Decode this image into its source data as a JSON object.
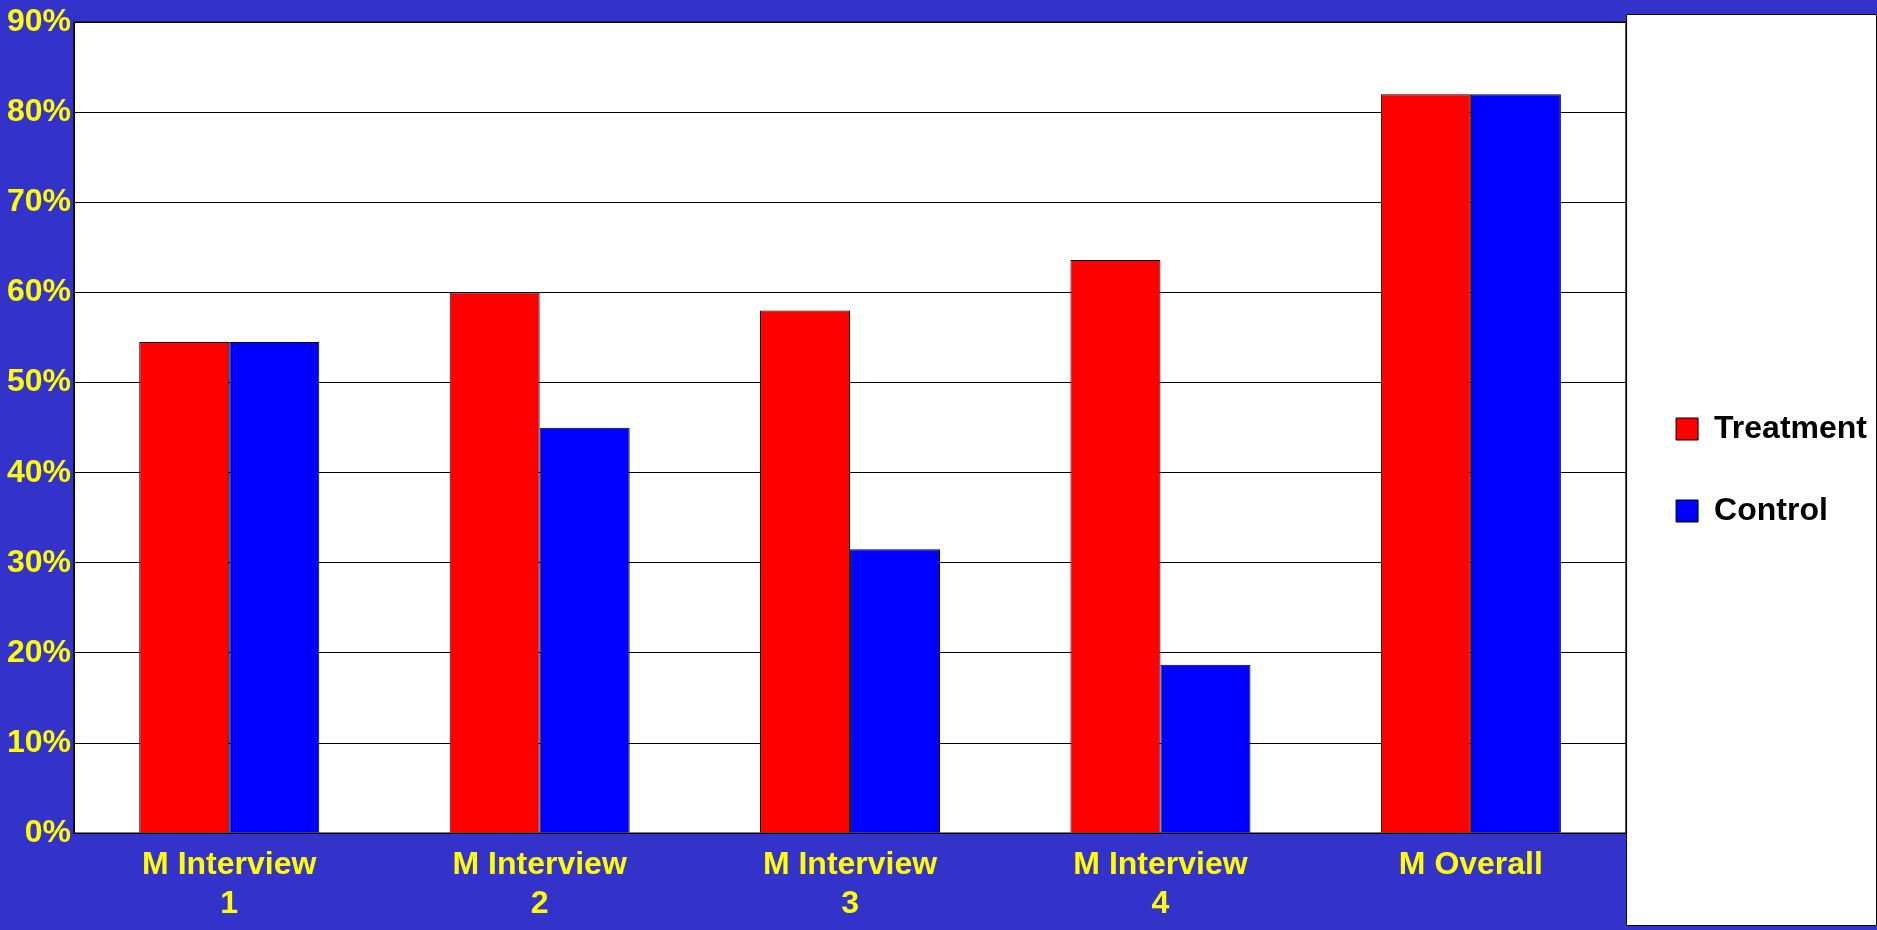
{
  "chart_data": {
    "type": "bar",
    "categories": [
      "M Interview 1",
      "M Interview 2",
      "M Interview 3",
      "M Interview 4",
      "M Overall"
    ],
    "series": [
      {
        "name": "Treatment",
        "color": "#ff0000",
        "values": [
          54.5,
          60,
          58,
          63.6,
          82
        ]
      },
      {
        "name": "Control",
        "color": "#0000ff",
        "values": [
          54.5,
          45,
          31.5,
          18.7,
          82
        ]
      }
    ],
    "ylim": [
      0,
      90
    ],
    "yticks": [
      {
        "value": 0,
        "label": "0%"
      },
      {
        "value": 10,
        "label": "10%"
      },
      {
        "value": 20,
        "label": "20%"
      },
      {
        "value": 30,
        "label": "30%"
      },
      {
        "value": 40,
        "label": "40%"
      },
      {
        "value": 50,
        "label": "50%"
      },
      {
        "value": 60,
        "label": "60%"
      },
      {
        "value": 70,
        "label": "70%"
      },
      {
        "value": 80,
        "label": "80%"
      },
      {
        "value": 90,
        "label": "90%"
      }
    ],
    "grid": "y",
    "legend": "right"
  }
}
